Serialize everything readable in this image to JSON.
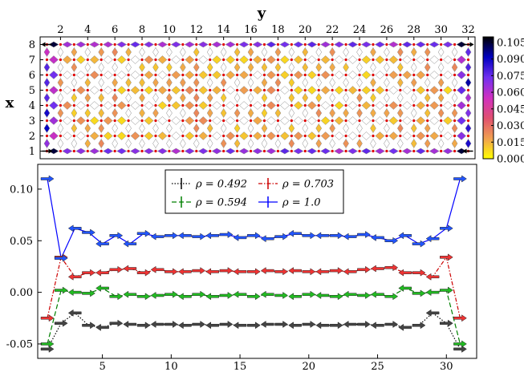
{
  "chart_data": [
    {
      "type": "heatmap",
      "xlabel": "y",
      "ylabel": "x",
      "x_ticks": [
        2,
        4,
        6,
        8,
        10,
        12,
        14,
        16,
        18,
        20,
        22,
        24,
        26,
        28,
        30,
        32
      ],
      "y_ticks": [
        1,
        2,
        3,
        4,
        5,
        6,
        7,
        8
      ],
      "xlim": [
        0.5,
        32.5
      ],
      "ylim": [
        0.5,
        8.5
      ],
      "colorbar": {
        "ticks": [
          "0.000",
          "0.015",
          "0.030",
          "0.045",
          "0.060",
          "0.075",
          "0.090",
          "0.105"
        ],
        "range": [
          0,
          0.11
        ],
        "colors": [
          "#ffff00",
          "#f0a050",
          "#e05070",
          "#d030c0",
          "#7030f0",
          "#0000c0",
          "#000000"
        ]
      },
      "grid_columns": 32,
      "grid_rows": 8
    },
    {
      "type": "line",
      "xlim": [
        0.3,
        32.2
      ],
      "ylim": [
        -0.064,
        0.124
      ],
      "x_ticks": [
        "5",
        "10",
        "15",
        "20",
        "25",
        "30"
      ],
      "x_tick_values": [
        5,
        10,
        15,
        20,
        25,
        30
      ],
      "y_ticks": [
        "-0.05",
        "0.00",
        "0.05",
        "0.10"
      ],
      "y_tick_values": [
        -0.05,
        0.0,
        0.05,
        0.1
      ],
      "legend_placement": "top-center",
      "series": [
        {
          "name": "ρ = 0.492",
          "color": "#000000",
          "marker_color": "#444444",
          "style": "dotted",
          "points": [
            [
              1,
              -0.055
            ],
            [
              2,
              -0.03
            ],
            [
              3,
              -0.02
            ],
            [
              4,
              -0.032
            ],
            [
              5,
              -0.034
            ],
            [
              6,
              -0.03
            ],
            [
              7,
              -0.031
            ],
            [
              8,
              -0.032
            ],
            [
              9,
              -0.031
            ],
            [
              10,
              -0.031
            ],
            [
              11,
              -0.032
            ],
            [
              12,
              -0.031
            ],
            [
              13,
              -0.032
            ],
            [
              14,
              -0.031
            ],
            [
              15,
              -0.032
            ],
            [
              16,
              -0.032
            ],
            [
              17,
              -0.031
            ],
            [
              18,
              -0.031
            ],
            [
              19,
              -0.032
            ],
            [
              20,
              -0.031
            ],
            [
              21,
              -0.032
            ],
            [
              22,
              -0.032
            ],
            [
              23,
              -0.031
            ],
            [
              24,
              -0.031
            ],
            [
              25,
              -0.032
            ],
            [
              26,
              -0.031
            ],
            [
              27,
              -0.034
            ],
            [
              28,
              -0.032
            ],
            [
              29,
              -0.02
            ],
            [
              30,
              -0.03
            ],
            [
              31,
              -0.055
            ]
          ]
        },
        {
          "name": "ρ = 0.594",
          "color": "#008000",
          "marker_color": "#22bb22",
          "style": "dashed",
          "points": [
            [
              1,
              -0.05
            ],
            [
              2,
              0.002
            ],
            [
              3,
              0.0
            ],
            [
              4,
              -0.001
            ],
            [
              5,
              0.004
            ],
            [
              6,
              -0.004
            ],
            [
              7,
              -0.002
            ],
            [
              8,
              -0.004
            ],
            [
              9,
              -0.003
            ],
            [
              10,
              -0.002
            ],
            [
              11,
              -0.004
            ],
            [
              12,
              -0.002
            ],
            [
              13,
              -0.004
            ],
            [
              14,
              -0.003
            ],
            [
              15,
              -0.002
            ],
            [
              16,
              -0.004
            ],
            [
              17,
              -0.002
            ],
            [
              18,
              -0.003
            ],
            [
              19,
              -0.004
            ],
            [
              20,
              -0.002
            ],
            [
              21,
              -0.003
            ],
            [
              22,
              -0.004
            ],
            [
              23,
              -0.002
            ],
            [
              24,
              -0.003
            ],
            [
              25,
              -0.002
            ],
            [
              26,
              -0.004
            ],
            [
              27,
              0.004
            ],
            [
              28,
              -0.001
            ],
            [
              29,
              0.0
            ],
            [
              30,
              0.002
            ],
            [
              31,
              -0.05
            ]
          ]
        },
        {
          "name": "ρ = 0.703",
          "color": "#cc0000",
          "marker_color": "#ee3333",
          "style": "dashdot",
          "points": [
            [
              1,
              -0.025
            ],
            [
              2,
              0.034
            ],
            [
              3,
              0.015
            ],
            [
              4,
              0.019
            ],
            [
              5,
              0.019
            ],
            [
              6,
              0.022
            ],
            [
              7,
              0.023
            ],
            [
              8,
              0.019
            ],
            [
              9,
              0.022
            ],
            [
              10,
              0.02
            ],
            [
              11,
              0.02
            ],
            [
              12,
              0.021
            ],
            [
              13,
              0.02
            ],
            [
              14,
              0.021
            ],
            [
              15,
              0.02
            ],
            [
              16,
              0.02
            ],
            [
              17,
              0.021
            ],
            [
              18,
              0.02
            ],
            [
              19,
              0.021
            ],
            [
              20,
              0.02
            ],
            [
              21,
              0.02
            ],
            [
              22,
              0.021
            ],
            [
              23,
              0.02
            ],
            [
              24,
              0.022
            ],
            [
              25,
              0.023
            ],
            [
              26,
              0.024
            ],
            [
              27,
              0.019
            ],
            [
              28,
              0.019
            ],
            [
              29,
              0.015
            ],
            [
              30,
              0.034
            ],
            [
              31,
              -0.025
            ]
          ]
        },
        {
          "name": "ρ = 1.0",
          "color": "#0000ff",
          "marker_color": "#2255ff",
          "style": "solid",
          "points": [
            [
              1,
              0.11
            ],
            [
              2,
              0.033
            ],
            [
              3,
              0.062
            ],
            [
              4,
              0.058
            ],
            [
              5,
              0.047
            ],
            [
              6,
              0.055
            ],
            [
              7,
              0.047
            ],
            [
              8,
              0.057
            ],
            [
              9,
              0.054
            ],
            [
              10,
              0.055
            ],
            [
              11,
              0.055
            ],
            [
              12,
              0.054
            ],
            [
              13,
              0.055
            ],
            [
              14,
              0.056
            ],
            [
              15,
              0.053
            ],
            [
              16,
              0.055
            ],
            [
              17,
              0.052
            ],
            [
              18,
              0.054
            ],
            [
              19,
              0.057
            ],
            [
              20,
              0.055
            ],
            [
              21,
              0.055
            ],
            [
              22,
              0.055
            ],
            [
              23,
              0.054
            ],
            [
              24,
              0.056
            ],
            [
              25,
              0.053
            ],
            [
              26,
              0.05
            ],
            [
              27,
              0.055
            ],
            [
              28,
              0.047
            ],
            [
              29,
              0.052
            ],
            [
              30,
              0.062
            ],
            [
              31,
              0.11
            ]
          ]
        }
      ]
    }
  ]
}
